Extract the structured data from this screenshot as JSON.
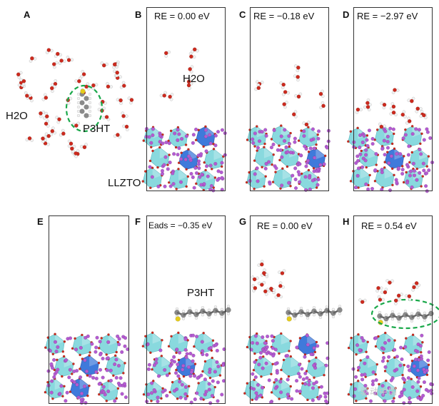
{
  "panels": [
    {
      "letter": "A"
    },
    {
      "letter": "B",
      "energy": "RE = 0.00 eV"
    },
    {
      "letter": "C",
      "energy": "RE = −0.18 eV"
    },
    {
      "letter": "D",
      "energy": "RE = −2.97 eV"
    },
    {
      "letter": "E"
    },
    {
      "letter": "F",
      "energy": "Eads = −0.35 eV"
    },
    {
      "letter": "G",
      "energy": "RE = 0.00 eV"
    },
    {
      "letter": "H",
      "energy": "RE = 0.54 eV"
    }
  ],
  "labels": {
    "water_a": "H2O",
    "p3ht_a": "P3HT",
    "water_b": "H2O",
    "llzto": "LLZTO",
    "p3ht_f": "P3HT"
  },
  "watermark": "驱动中国",
  "colors": {
    "frame": "#333333",
    "polyhedron_light": "#7fd6dc",
    "polyhedron_dark": "#2f6fd8",
    "lithium": "#b45bd1",
    "oxygen": "#cc2a1e",
    "hydrogen": "#f2f2f2",
    "carbon": "#8a8a8a",
    "sulfur": "#e6cc1c",
    "highlight": "#1aa84a"
  }
}
